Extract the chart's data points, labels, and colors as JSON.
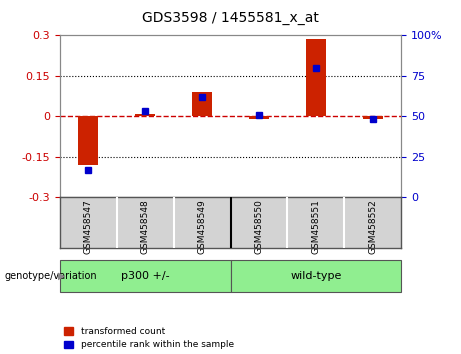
{
  "title": "GDS3598 / 1455581_x_at",
  "samples": [
    "GSM458547",
    "GSM458548",
    "GSM458549",
    "GSM458550",
    "GSM458551",
    "GSM458552"
  ],
  "transformed_count": [
    -0.18,
    0.01,
    0.09,
    -0.01,
    0.285,
    -0.01
  ],
  "percentile_rank": [
    17,
    53,
    62,
    51,
    80,
    48
  ],
  "ylim_left": [
    -0.3,
    0.3
  ],
  "ylim_right": [
    0,
    100
  ],
  "yticks_left": [
    -0.3,
    -0.15,
    0,
    0.15,
    0.3
  ],
  "yticks_right": [
    0,
    25,
    50,
    75,
    100
  ],
  "ylabel_left_color": "#cc0000",
  "ylabel_right_color": "#0000cc",
  "bar_color_red": "#cc2200",
  "bar_color_blue": "#0000cc",
  "hline_color": "#cc0000",
  "dotted_line_color": "#000000",
  "background_color": "#ffffff",
  "plot_bg_color": "#ffffff",
  "legend_red_label": "transformed count",
  "legend_blue_label": "percentile rank within the sample",
  "genotype_label": "genotype/variation",
  "group_label_p300": "p300 +/-",
  "group_label_wt": "wild-type",
  "group_color": "#90EE90",
  "label_bg_color": "#d3d3d3"
}
